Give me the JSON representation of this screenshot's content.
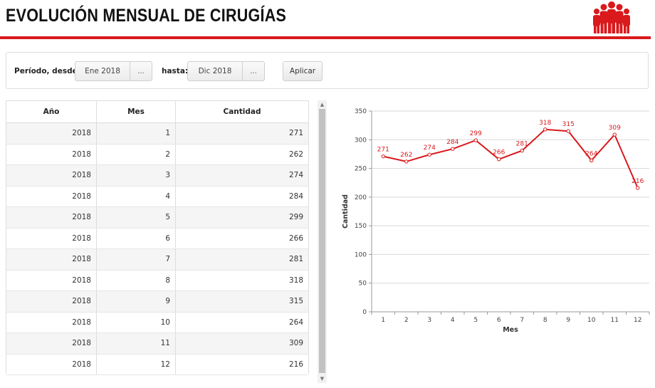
{
  "header": {
    "title": "EVOLUCIÓN MENSUAL DE CIRUGÍAS",
    "logo_icon": "people-group-icon",
    "accent_color": "#d9191c"
  },
  "filters": {
    "from_label": "Período, desde:",
    "from_value": "Ene 2018",
    "from_picker": "...",
    "to_label": "hasta:",
    "to_value": "Dic 2018",
    "to_picker": "...",
    "apply_label": "Aplicar"
  },
  "table": {
    "headers": [
      "Año",
      "Mes",
      "Cantidad"
    ],
    "rows": [
      [
        "2018",
        "1",
        "271"
      ],
      [
        "2018",
        "2",
        "262"
      ],
      [
        "2018",
        "3",
        "274"
      ],
      [
        "2018",
        "4",
        "284"
      ],
      [
        "2018",
        "5",
        "299"
      ],
      [
        "2018",
        "6",
        "266"
      ],
      [
        "2018",
        "7",
        "281"
      ],
      [
        "2018",
        "8",
        "318"
      ],
      [
        "2018",
        "9",
        "315"
      ],
      [
        "2018",
        "10",
        "264"
      ],
      [
        "2018",
        "11",
        "309"
      ],
      [
        "2018",
        "12",
        "216"
      ]
    ]
  },
  "chart_data": {
    "type": "line",
    "x": [
      1,
      2,
      3,
      4,
      5,
      6,
      7,
      8,
      9,
      10,
      11,
      12
    ],
    "series": [
      {
        "values": [
          271,
          262,
          274,
          284,
          299,
          266,
          281,
          318,
          315,
          264,
          309,
          216
        ],
        "color": "#d9191c"
      }
    ],
    "xlabel": "Mes",
    "ylabel": "Cantidad",
    "ylim": [
      0,
      350
    ],
    "yticks": [
      0,
      50,
      100,
      150,
      200,
      250,
      300,
      350
    ],
    "grid": true,
    "data_labels": true,
    "legend": "none"
  }
}
